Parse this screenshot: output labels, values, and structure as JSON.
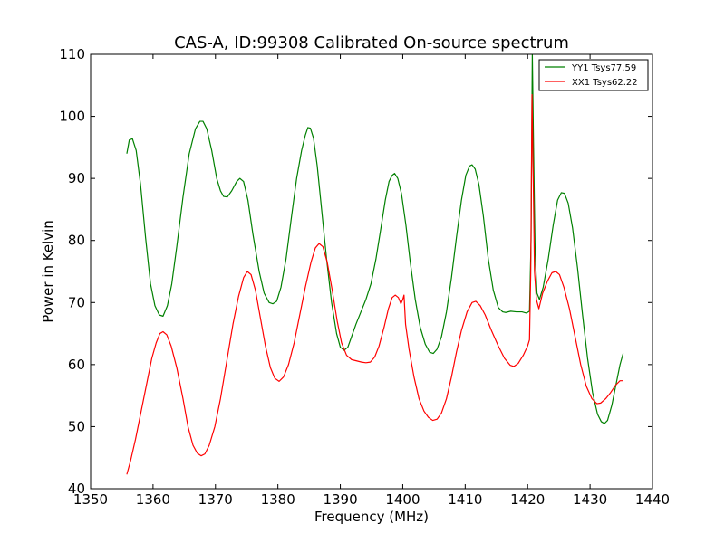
{
  "chart_data": {
    "type": "line",
    "title": "CAS-A, ID:99308 Calibrated On-source spectrum",
    "xlabel": "Frequency (MHz)",
    "ylabel": "Power in Kelvin",
    "xlim": [
      1350,
      1440
    ],
    "ylim": [
      40,
      110
    ],
    "xticks": [
      1350,
      1360,
      1370,
      1380,
      1390,
      1400,
      1410,
      1420,
      1430,
      1440
    ],
    "yticks": [
      40,
      50,
      60,
      70,
      80,
      90,
      100,
      110
    ],
    "grid": false,
    "legend_position": "top-right",
    "series": [
      {
        "name": "YY1 Tsys77.59",
        "color": "#008000",
        "points": [
          [
            1355.8,
            94.0
          ],
          [
            1356.2,
            96.2
          ],
          [
            1356.7,
            96.4
          ],
          [
            1357.3,
            94.5
          ],
          [
            1358.0,
            89.0
          ],
          [
            1358.8,
            80.5
          ],
          [
            1359.6,
            73.0
          ],
          [
            1360.3,
            69.5
          ],
          [
            1361.0,
            68.0
          ],
          [
            1361.6,
            67.8
          ],
          [
            1362.3,
            69.5
          ],
          [
            1363.0,
            73.0
          ],
          [
            1363.8,
            79.0
          ],
          [
            1364.8,
            87.0
          ],
          [
            1365.8,
            94.0
          ],
          [
            1366.8,
            98.0
          ],
          [
            1367.5,
            99.2
          ],
          [
            1368.0,
            99.2
          ],
          [
            1368.6,
            98.0
          ],
          [
            1369.4,
            94.5
          ],
          [
            1370.2,
            90.0
          ],
          [
            1370.8,
            88.0
          ],
          [
            1371.3,
            87.1
          ],
          [
            1371.9,
            87.0
          ],
          [
            1372.6,
            88.0
          ],
          [
            1373.4,
            89.5
          ],
          [
            1373.9,
            90.0
          ],
          [
            1374.5,
            89.5
          ],
          [
            1375.2,
            86.5
          ],
          [
            1376.0,
            81.0
          ],
          [
            1377.0,
            75.0
          ],
          [
            1377.8,
            71.5
          ],
          [
            1378.6,
            70.0
          ],
          [
            1379.2,
            69.8
          ],
          [
            1379.8,
            70.2
          ],
          [
            1380.5,
            72.5
          ],
          [
            1381.3,
            77.0
          ],
          [
            1382.2,
            84.0
          ],
          [
            1383.0,
            90.0
          ],
          [
            1383.8,
            94.5
          ],
          [
            1384.4,
            97.0
          ],
          [
            1384.8,
            98.2
          ],
          [
            1385.2,
            98.1
          ],
          [
            1385.7,
            96.5
          ],
          [
            1386.3,
            92.0
          ],
          [
            1387.0,
            85.0
          ],
          [
            1387.8,
            77.0
          ],
          [
            1388.6,
            70.0
          ],
          [
            1389.4,
            65.0
          ],
          [
            1390.0,
            62.8
          ],
          [
            1390.6,
            62.3
          ],
          [
            1391.2,
            62.8
          ],
          [
            1391.8,
            64.5
          ],
          [
            1392.5,
            66.5
          ],
          [
            1393.3,
            68.5
          ],
          [
            1394.1,
            70.5
          ],
          [
            1394.9,
            73.0
          ],
          [
            1395.7,
            77.0
          ],
          [
            1396.5,
            82.0
          ],
          [
            1397.2,
            86.5
          ],
          [
            1397.8,
            89.5
          ],
          [
            1398.3,
            90.5
          ],
          [
            1398.7,
            90.8
          ],
          [
            1399.2,
            90.0
          ],
          [
            1399.8,
            87.5
          ],
          [
            1400.5,
            82.5
          ],
          [
            1401.2,
            76.5
          ],
          [
            1402.0,
            70.5
          ],
          [
            1402.8,
            66.0
          ],
          [
            1403.6,
            63.3
          ],
          [
            1404.3,
            62.0
          ],
          [
            1404.9,
            61.8
          ],
          [
            1405.5,
            62.5
          ],
          [
            1406.2,
            64.5
          ],
          [
            1407.0,
            68.5
          ],
          [
            1407.8,
            74.0
          ],
          [
            1408.6,
            80.5
          ],
          [
            1409.4,
            86.5
          ],
          [
            1410.1,
            90.5
          ],
          [
            1410.7,
            92.0
          ],
          [
            1411.1,
            92.2
          ],
          [
            1411.6,
            91.5
          ],
          [
            1412.2,
            89.0
          ],
          [
            1412.9,
            84.0
          ],
          [
            1413.7,
            77.0
          ],
          [
            1414.5,
            72.0
          ],
          [
            1415.3,
            69.2
          ],
          [
            1416.0,
            68.5
          ],
          [
            1416.5,
            68.4
          ],
          [
            1417.3,
            68.6
          ],
          [
            1418.2,
            68.5
          ],
          [
            1419.1,
            68.5
          ],
          [
            1419.8,
            68.3
          ],
          [
            1420.3,
            68.6
          ],
          [
            1420.55,
            80.0
          ],
          [
            1420.75,
            110.0
          ],
          [
            1420.95,
            95.0
          ],
          [
            1421.2,
            78.0
          ],
          [
            1421.5,
            71.5
          ],
          [
            1421.9,
            70.5
          ],
          [
            1422.5,
            72.5
          ],
          [
            1423.3,
            77.0
          ],
          [
            1424.1,
            82.5
          ],
          [
            1424.8,
            86.5
          ],
          [
            1425.4,
            87.7
          ],
          [
            1425.9,
            87.6
          ],
          [
            1426.5,
            86.0
          ],
          [
            1427.2,
            82.0
          ],
          [
            1428.0,
            75.5
          ],
          [
            1428.8,
            68.0
          ],
          [
            1429.6,
            61.0
          ],
          [
            1430.4,
            55.5
          ],
          [
            1431.2,
            52.0
          ],
          [
            1431.8,
            50.8
          ],
          [
            1432.3,
            50.5
          ],
          [
            1432.8,
            51.0
          ],
          [
            1433.5,
            53.5
          ],
          [
            1434.2,
            57.0
          ],
          [
            1434.8,
            60.0
          ],
          [
            1435.3,
            61.8
          ]
        ]
      },
      {
        "name": "XX1 Tsys62.22",
        "color": "#ff0000",
        "points": [
          [
            1355.8,
            42.3
          ],
          [
            1356.4,
            44.5
          ],
          [
            1357.2,
            48.0
          ],
          [
            1358.1,
            52.5
          ],
          [
            1359.0,
            57.0
          ],
          [
            1359.8,
            61.0
          ],
          [
            1360.5,
            63.5
          ],
          [
            1361.1,
            65.0
          ],
          [
            1361.6,
            65.3
          ],
          [
            1362.2,
            64.8
          ],
          [
            1362.9,
            63.0
          ],
          [
            1363.8,
            59.5
          ],
          [
            1364.8,
            54.5
          ],
          [
            1365.6,
            50.0
          ],
          [
            1366.4,
            47.0
          ],
          [
            1367.1,
            45.7
          ],
          [
            1367.7,
            45.3
          ],
          [
            1368.3,
            45.6
          ],
          [
            1369.0,
            47.0
          ],
          [
            1369.9,
            50.0
          ],
          [
            1370.8,
            54.5
          ],
          [
            1371.8,
            60.5
          ],
          [
            1372.8,
            66.5
          ],
          [
            1373.7,
            71.0
          ],
          [
            1374.5,
            74.0
          ],
          [
            1375.1,
            75.0
          ],
          [
            1375.7,
            74.5
          ],
          [
            1376.4,
            72.0
          ],
          [
            1377.2,
            67.5
          ],
          [
            1378.0,
            63.0
          ],
          [
            1378.8,
            59.5
          ],
          [
            1379.5,
            57.8
          ],
          [
            1380.2,
            57.3
          ],
          [
            1380.9,
            58.0
          ],
          [
            1381.7,
            60.0
          ],
          [
            1382.6,
            63.5
          ],
          [
            1383.5,
            68.0
          ],
          [
            1384.4,
            72.5
          ],
          [
            1385.3,
            76.5
          ],
          [
            1386.0,
            78.8
          ],
          [
            1386.6,
            79.5
          ],
          [
            1387.2,
            79.0
          ],
          [
            1387.9,
            76.5
          ],
          [
            1388.7,
            72.0
          ],
          [
            1389.5,
            67.0
          ],
          [
            1390.2,
            63.5
          ],
          [
            1391.0,
            61.5
          ],
          [
            1391.8,
            60.8
          ],
          [
            1392.6,
            60.6
          ],
          [
            1393.4,
            60.4
          ],
          [
            1394.1,
            60.3
          ],
          [
            1394.8,
            60.4
          ],
          [
            1395.5,
            61.2
          ],
          [
            1396.2,
            63.0
          ],
          [
            1397.0,
            66.0
          ],
          [
            1397.7,
            69.0
          ],
          [
            1398.3,
            70.8
          ],
          [
            1398.8,
            71.2
          ],
          [
            1399.3,
            70.8
          ],
          [
            1399.7,
            69.8
          ],
          [
            1400.0,
            70.5
          ],
          [
            1400.2,
            71.2
          ],
          [
            1400.45,
            66.5
          ],
          [
            1401.0,
            62.5
          ],
          [
            1401.8,
            58.0
          ],
          [
            1402.6,
            54.5
          ],
          [
            1403.4,
            52.5
          ],
          [
            1404.1,
            51.5
          ],
          [
            1404.8,
            51.0
          ],
          [
            1405.5,
            51.2
          ],
          [
            1406.2,
            52.2
          ],
          [
            1407.0,
            54.5
          ],
          [
            1407.8,
            58.0
          ],
          [
            1408.6,
            62.0
          ],
          [
            1409.4,
            65.5
          ],
          [
            1410.3,
            68.5
          ],
          [
            1411.1,
            70.0
          ],
          [
            1411.7,
            70.2
          ],
          [
            1412.4,
            69.5
          ],
          [
            1413.2,
            68.0
          ],
          [
            1414.2,
            65.5
          ],
          [
            1415.3,
            63.0
          ],
          [
            1416.3,
            61.0
          ],
          [
            1417.2,
            59.9
          ],
          [
            1417.8,
            59.7
          ],
          [
            1418.5,
            60.2
          ],
          [
            1419.3,
            61.5
          ],
          [
            1420.0,
            63.0
          ],
          [
            1420.3,
            64.0
          ],
          [
            1420.5,
            75.0
          ],
          [
            1420.7,
            103.5
          ],
          [
            1420.9,
            90.0
          ],
          [
            1421.1,
            75.0
          ],
          [
            1421.4,
            70.5
          ],
          [
            1421.8,
            69.0
          ],
          [
            1422.4,
            71.5
          ],
          [
            1423.2,
            73.5
          ],
          [
            1423.9,
            74.8
          ],
          [
            1424.5,
            75.0
          ],
          [
            1425.1,
            74.5
          ],
          [
            1425.8,
            72.5
          ],
          [
            1426.7,
            69.0
          ],
          [
            1427.6,
            64.5
          ],
          [
            1428.5,
            60.0
          ],
          [
            1429.4,
            56.5
          ],
          [
            1430.3,
            54.5
          ],
          [
            1431.1,
            53.7
          ],
          [
            1431.7,
            53.8
          ],
          [
            1432.5,
            54.5
          ],
          [
            1433.3,
            55.5
          ],
          [
            1434.1,
            56.7
          ],
          [
            1434.8,
            57.4
          ],
          [
            1435.3,
            57.4
          ]
        ]
      }
    ]
  }
}
